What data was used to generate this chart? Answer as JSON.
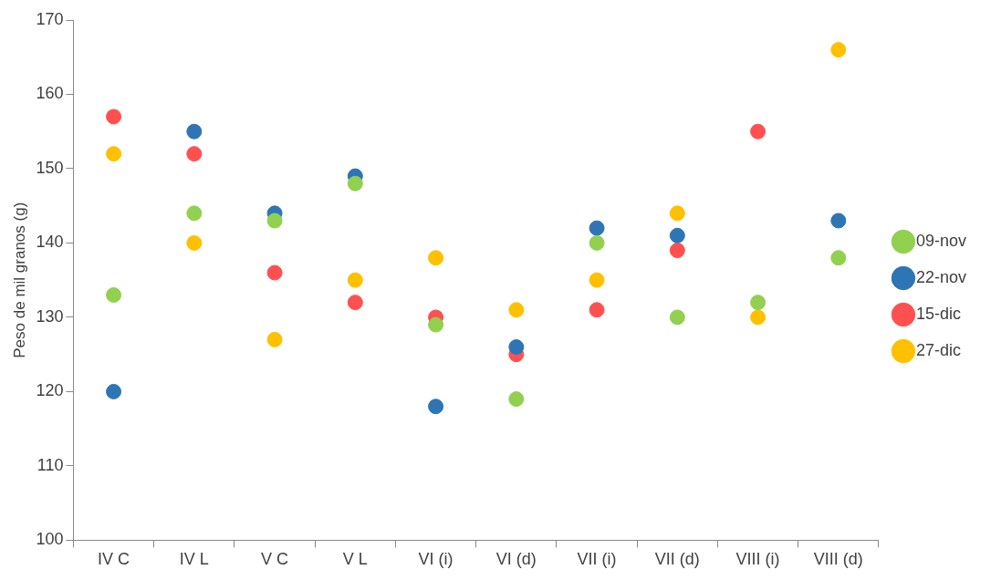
{
  "chart_data": {
    "type": "scatter",
    "ylabel": "Peso de mil granos (g)",
    "categories": [
      "IV C",
      "IV L",
      "V C",
      "V L",
      "VI (i)",
      "VI (d)",
      "VII (i)",
      "VII (d)",
      "VIII (i)",
      "VIII (d)"
    ],
    "series": [
      {
        "name": "09-nov",
        "color": "#92d050",
        "values": [
          133,
          144,
          143,
          148,
          129,
          119,
          140,
          130,
          132,
          138
        ]
      },
      {
        "name": "22-nov",
        "color": "#2e75b6",
        "values": [
          120,
          155,
          144,
          149,
          118,
          126,
          142,
          141,
          null,
          143
        ]
      },
      {
        "name": "15-dic",
        "color": "#ff5050",
        "values": [
          157,
          152,
          136,
          132,
          130,
          125,
          131,
          139,
          155,
          null
        ]
      },
      {
        "name": "27-dic",
        "color": "#ffc000",
        "values": [
          152,
          140,
          127,
          135,
          138,
          131,
          135,
          144,
          130,
          166
        ]
      }
    ],
    "ylim": [
      100,
      170
    ],
    "yticks": [
      100,
      110,
      120,
      130,
      140,
      150,
      160,
      170
    ],
    "legend": "right",
    "marker": "circle"
  }
}
